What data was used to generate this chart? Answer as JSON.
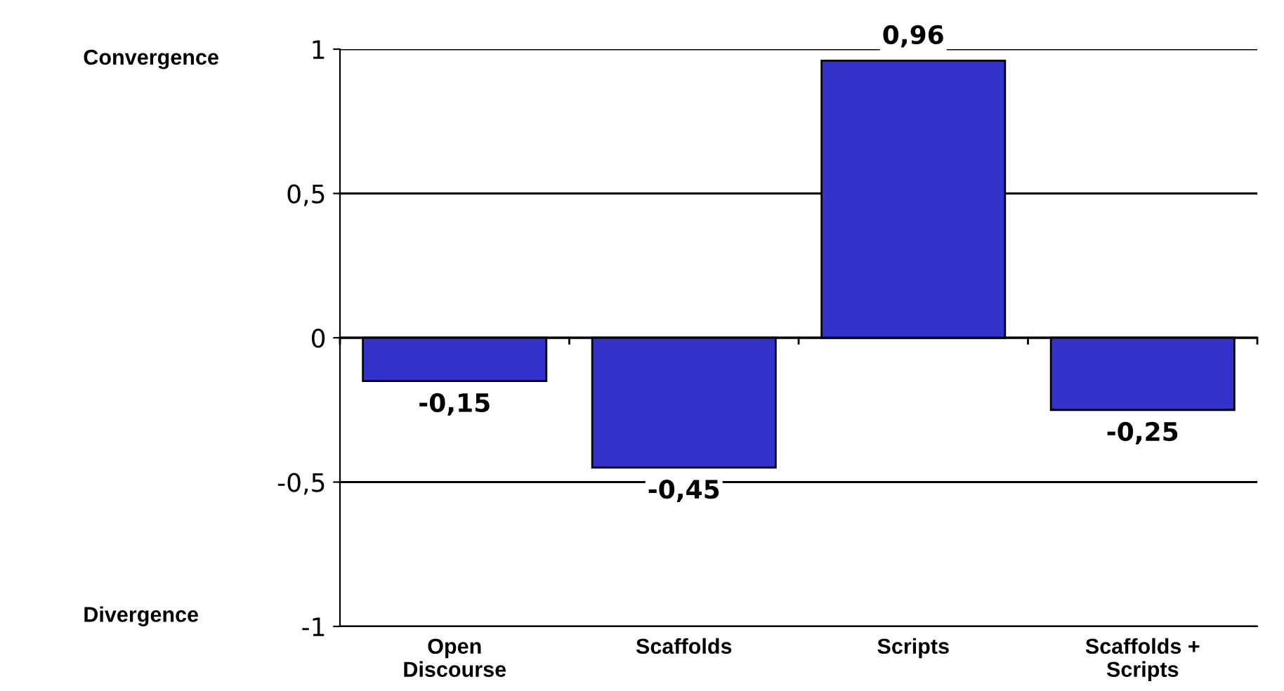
{
  "chart_data": {
    "type": "bar",
    "categories": [
      "Open\nDiscourse",
      "Scaffolds",
      "Scripts",
      "Scaffolds +\nScripts"
    ],
    "values": [
      -0.15,
      -0.45,
      0.96,
      -0.25
    ],
    "value_labels": [
      "-0,15",
      "-0,45",
      "0,96",
      "-0,25"
    ],
    "color": "#3333cc",
    "ylim": [
      -1,
      1
    ],
    "yticks": [
      -1,
      {
        "value": -0.5,
        "label": "-0,5"
      },
      0,
      {
        "value": 0.5,
        "label": "0,5"
      },
      1
    ],
    "grid": "y",
    "annotations": [
      "Convergence",
      "Divergence"
    ]
  }
}
